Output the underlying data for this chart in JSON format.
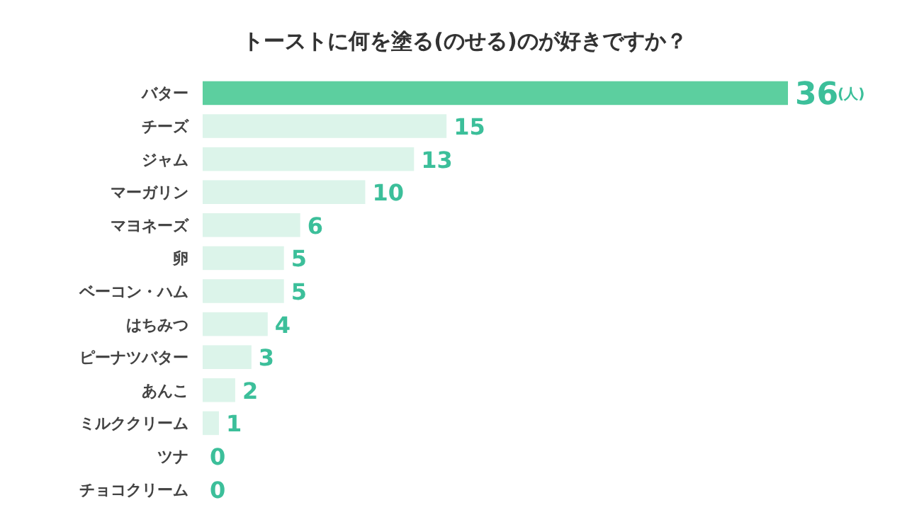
{
  "chart_data": {
    "type": "bar",
    "orientation": "horizontal",
    "title": "トーストに何を塗る(のせる)のが好きですか？",
    "categories": [
      "バター",
      "チーズ",
      "ジャム",
      "マーガリン",
      "マヨネーズ",
      "卵",
      "ベーコン・ハム",
      "はちみつ",
      "ピーナツバター",
      "あんこ",
      "ミルククリーム",
      "ツナ",
      "チョコクリーム"
    ],
    "values": [
      36,
      15,
      13,
      10,
      6,
      5,
      5,
      4,
      3,
      2,
      1,
      0,
      0
    ],
    "colors": [
      "#5ccf9f",
      "#dcf4ea",
      "#dcf4ea",
      "#dcf4ea",
      "#dcf4ea",
      "#dcf4ea",
      "#dcf4ea",
      "#dcf4ea",
      "#dcf4ea",
      "#dcf4ea",
      "#dcf4ea",
      "#dcf4ea",
      "#dcf4ea"
    ],
    "data_labels": true,
    "annotations": [
      "(人)"
    ]
  }
}
